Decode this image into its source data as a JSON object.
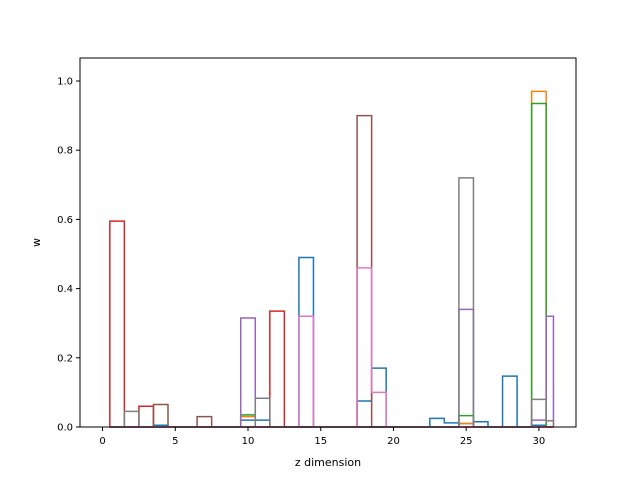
{
  "chart_data": {
    "type": "step-histogram",
    "xlabel": "z dimension",
    "ylabel": "w",
    "xlim": [
      -1.55,
      32.55
    ],
    "ylim": [
      0,
      1.0665
    ],
    "xticks": [
      0,
      5,
      10,
      15,
      20,
      25,
      30
    ],
    "yticks": [
      0.0,
      0.2,
      0.4,
      0.6,
      0.8,
      1.0
    ],
    "x_bin_edges": [
      0.5,
      1.5,
      2.5,
      3.5,
      4.5,
      5.5,
      6.5,
      7.5,
      8.5,
      9.5,
      10.5,
      11.5,
      12.5,
      13.5,
      14.5,
      15.5,
      16.5,
      17.5,
      18.5,
      19.5,
      20.5,
      21.5,
      22.5,
      23.5,
      24.5,
      25.5,
      26.5,
      27.5,
      28.5,
      29.5,
      30.5,
      31.0
    ],
    "legend": "none",
    "grid": false,
    "series": [
      {
        "color": "#1f77b4",
        "values": [
          0,
          0,
          0,
          0.005,
          0,
          0,
          0,
          0,
          0,
          0.02,
          0.02,
          0,
          0,
          0.49,
          0,
          0,
          0,
          0.075,
          0.17,
          0,
          0,
          0,
          0.025,
          0.012,
          0.01,
          0.015,
          0,
          0.147,
          0,
          0.005,
          0
        ]
      },
      {
        "color": "#ff7f0e",
        "values": [
          0,
          0,
          0,
          0,
          0,
          0,
          0,
          0,
          0,
          0.03,
          0,
          0,
          0,
          0,
          0,
          0,
          0,
          0,
          0,
          0,
          0,
          0,
          0,
          0,
          0.01,
          0,
          0,
          0,
          0,
          0.97,
          0
        ]
      },
      {
        "color": "#2ca02c",
        "values": [
          0,
          0,
          0,
          0,
          0,
          0,
          0,
          0,
          0,
          0.035,
          0,
          0,
          0,
          0,
          0,
          0,
          0,
          0,
          0,
          0,
          0,
          0,
          0,
          0,
          0.033,
          0,
          0,
          0,
          0,
          0.935,
          0
        ]
      },
      {
        "color": "#d62728",
        "values": [
          0.595,
          0,
          0.06,
          0,
          0,
          0,
          0,
          0,
          0,
          0,
          0,
          0.335,
          0,
          0,
          0,
          0,
          0,
          0,
          0,
          0,
          0,
          0,
          0,
          0,
          0,
          0,
          0,
          0,
          0,
          0,
          0
        ]
      },
      {
        "color": "#9467bd",
        "values": [
          0,
          0,
          0,
          0,
          0,
          0,
          0,
          0,
          0,
          0.315,
          0,
          0,
          0,
          0,
          0,
          0,
          0,
          0,
          0,
          0,
          0,
          0,
          0,
          0,
          0.34,
          0,
          0,
          0,
          0,
          0.02,
          0.32
        ]
      },
      {
        "color": "#8c564b",
        "values": [
          0,
          0,
          0,
          0.065,
          0,
          0,
          0.03,
          0,
          0,
          0,
          0,
          0,
          0,
          0,
          0,
          0,
          0,
          0.9,
          0,
          0,
          0,
          0,
          0,
          0,
          0,
          0,
          0,
          0,
          0,
          0,
          0
        ]
      },
      {
        "color": "#e377c2",
        "values": [
          0,
          0,
          0,
          0,
          0,
          0,
          0,
          0,
          0,
          0,
          0,
          0,
          0,
          0.32,
          0,
          0,
          0,
          0.46,
          0.1,
          0,
          0,
          0,
          0,
          0,
          0,
          0,
          0,
          0,
          0,
          0,
          0
        ]
      },
      {
        "color": "#7f7f7f",
        "values": [
          0,
          0.045,
          0,
          0,
          0,
          0,
          0,
          0,
          0,
          0,
          0.083,
          0,
          0,
          0,
          0,
          0,
          0,
          0,
          0,
          0,
          0,
          0,
          0,
          0,
          0.72,
          0,
          0,
          0,
          0,
          0.08,
          0.018
        ]
      }
    ]
  }
}
